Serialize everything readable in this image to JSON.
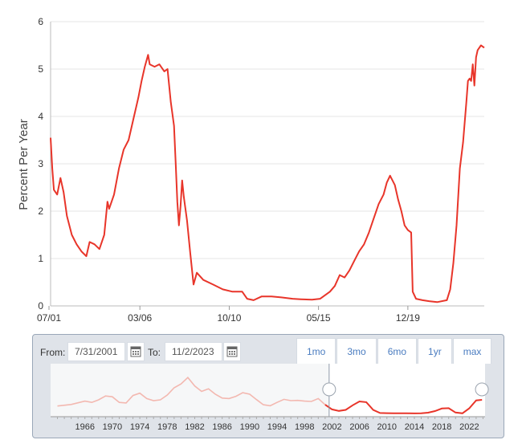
{
  "chart_data": {
    "type": "line",
    "title": "",
    "xlabel": "",
    "ylabel": "Percent Per Year",
    "ylim": [
      0,
      6
    ],
    "yticks": [
      "0",
      "1",
      "2",
      "3",
      "4",
      "5",
      "6"
    ],
    "xlim": [
      "2001-07-31",
      "2023-11-02"
    ],
    "xticks": [
      {
        "label": "07/01",
        "date": "2001-07-01"
      },
      {
        "label": "03/06",
        "date": "2006-03-01"
      },
      {
        "label": "10/10",
        "date": "2010-10-01"
      },
      {
        "label": "05/15",
        "date": "2015-05-01"
      },
      {
        "label": "12/19",
        "date": "2019-12-01"
      }
    ],
    "grid": true,
    "color": "#e8352a",
    "series": [
      {
        "name": "",
        "points": [
          [
            "2001-07-31",
            3.55
          ],
          [
            "2001-09-01",
            2.9
          ],
          [
            "2001-10-01",
            2.45
          ],
          [
            "2001-12-01",
            2.35
          ],
          [
            "2002-02-01",
            2.7
          ],
          [
            "2002-04-01",
            2.4
          ],
          [
            "2002-06-01",
            1.9
          ],
          [
            "2002-09-01",
            1.5
          ],
          [
            "2002-12-01",
            1.3
          ],
          [
            "2003-03-01",
            1.15
          ],
          [
            "2003-06-01",
            1.05
          ],
          [
            "2003-08-01",
            1.35
          ],
          [
            "2003-11-01",
            1.3
          ],
          [
            "2004-02-01",
            1.2
          ],
          [
            "2004-05-01",
            1.5
          ],
          [
            "2004-07-01",
            2.2
          ],
          [
            "2004-08-01",
            2.05
          ],
          [
            "2004-11-01",
            2.35
          ],
          [
            "2005-02-01",
            2.9
          ],
          [
            "2005-05-01",
            3.3
          ],
          [
            "2005-08-01",
            3.5
          ],
          [
            "2005-11-01",
            3.95
          ],
          [
            "2006-02-01",
            4.4
          ],
          [
            "2006-04-01",
            4.75
          ],
          [
            "2006-06-01",
            5.05
          ],
          [
            "2006-08-01",
            5.3
          ],
          [
            "2006-09-01",
            5.1
          ],
          [
            "2006-12-01",
            5.05
          ],
          [
            "2007-03-01",
            5.1
          ],
          [
            "2007-06-01",
            4.95
          ],
          [
            "2007-08-01",
            5.0
          ],
          [
            "2007-10-01",
            4.3
          ],
          [
            "2007-12-01",
            3.8
          ],
          [
            "2008-01-01",
            3.0
          ],
          [
            "2008-02-01",
            2.2
          ],
          [
            "2008-03-01",
            1.7
          ],
          [
            "2008-04-01",
            2.1
          ],
          [
            "2008-05-01",
            2.65
          ],
          [
            "2008-06-01",
            2.3
          ],
          [
            "2008-08-01",
            1.8
          ],
          [
            "2008-10-01",
            1.1
          ],
          [
            "2008-12-01",
            0.45
          ],
          [
            "2009-02-01",
            0.7
          ],
          [
            "2009-06-01",
            0.55
          ],
          [
            "2009-12-01",
            0.45
          ],
          [
            "2010-06-01",
            0.35
          ],
          [
            "2010-12-01",
            0.3
          ],
          [
            "2011-06-01",
            0.3
          ],
          [
            "2011-09-01",
            0.15
          ],
          [
            "2012-01-01",
            0.12
          ],
          [
            "2012-06-01",
            0.2
          ],
          [
            "2012-12-01",
            0.2
          ],
          [
            "2013-06-01",
            0.18
          ],
          [
            "2014-01-01",
            0.15
          ],
          [
            "2014-06-01",
            0.14
          ],
          [
            "2015-01-01",
            0.13
          ],
          [
            "2015-06-01",
            0.15
          ],
          [
            "2015-12-01",
            0.3
          ],
          [
            "2016-03-01",
            0.42
          ],
          [
            "2016-06-01",
            0.65
          ],
          [
            "2016-09-01",
            0.6
          ],
          [
            "2016-12-01",
            0.75
          ],
          [
            "2017-03-01",
            0.95
          ],
          [
            "2017-06-01",
            1.15
          ],
          [
            "2017-09-01",
            1.3
          ],
          [
            "2017-12-01",
            1.55
          ],
          [
            "2018-03-01",
            1.85
          ],
          [
            "2018-06-01",
            2.15
          ],
          [
            "2018-09-01",
            2.35
          ],
          [
            "2018-11-01",
            2.6
          ],
          [
            "2019-01-01",
            2.75
          ],
          [
            "2019-04-01",
            2.55
          ],
          [
            "2019-06-01",
            2.25
          ],
          [
            "2019-08-01",
            2.0
          ],
          [
            "2019-10-01",
            1.7
          ],
          [
            "2019-12-01",
            1.6
          ],
          [
            "2020-02-01",
            1.55
          ],
          [
            "2020-03-01",
            0.3
          ],
          [
            "2020-05-01",
            0.15
          ],
          [
            "2020-09-01",
            0.12
          ],
          [
            "2021-01-01",
            0.1
          ],
          [
            "2021-06-01",
            0.08
          ],
          [
            "2021-12-01",
            0.12
          ],
          [
            "2022-02-01",
            0.35
          ],
          [
            "2022-04-01",
            0.9
          ],
          [
            "2022-06-01",
            1.7
          ],
          [
            "2022-08-01",
            2.9
          ],
          [
            "2022-10-01",
            3.45
          ],
          [
            "2022-12-01",
            4.3
          ],
          [
            "2023-01-01",
            4.75
          ],
          [
            "2023-02-01",
            4.8
          ],
          [
            "2023-03-01",
            4.75
          ],
          [
            "2023-04-01",
            5.1
          ],
          [
            "2023-05-01",
            4.65
          ],
          [
            "2023-06-01",
            5.25
          ],
          [
            "2023-07-01",
            5.4
          ],
          [
            "2023-09-01",
            5.5
          ],
          [
            "2023-11-02",
            5.45
          ]
        ]
      }
    ],
    "navigator": {
      "xticks": [
        "1966",
        "1970",
        "1974",
        "1978",
        "1982",
        "1986",
        "1990",
        "1994",
        "1998",
        "2002",
        "2006",
        "2010",
        "2014",
        "2018",
        "2022"
      ],
      "points": [
        [
          1962,
          2.9
        ],
        [
          1964,
          3.5
        ],
        [
          1966,
          4.8
        ],
        [
          1967,
          4.3
        ],
        [
          1968,
          5.3
        ],
        [
          1969,
          6.8
        ],
        [
          1970,
          6.5
        ],
        [
          1971,
          4.3
        ],
        [
          1972,
          4.1
        ],
        [
          1973,
          7.0
        ],
        [
          1974,
          7.9
        ],
        [
          1975,
          5.8
        ],
        [
          1976,
          5.0
        ],
        [
          1977,
          5.3
        ],
        [
          1978,
          7.2
        ],
        [
          1979,
          10.0
        ],
        [
          1980,
          11.5
        ],
        [
          1981,
          14.0
        ],
        [
          1982,
          10.7
        ],
        [
          1983,
          8.6
        ],
        [
          1984,
          9.6
        ],
        [
          1985,
          7.5
        ],
        [
          1986,
          6.0
        ],
        [
          1987,
          5.8
        ],
        [
          1988,
          6.7
        ],
        [
          1989,
          8.1
        ],
        [
          1990,
          7.5
        ],
        [
          1991,
          5.4
        ],
        [
          1992,
          3.4
        ],
        [
          1993,
          3.0
        ],
        [
          1994,
          4.3
        ],
        [
          1995,
          5.5
        ],
        [
          1996,
          5.0
        ],
        [
          1997,
          5.1
        ],
        [
          1998,
          4.8
        ],
        [
          1999,
          4.7
        ],
        [
          2000,
          5.8
        ],
        [
          2001,
          3.4
        ],
        [
          2002,
          1.6
        ],
        [
          2003,
          1.0
        ],
        [
          2004,
          1.4
        ],
        [
          2005,
          3.2
        ],
        [
          2006,
          4.7
        ],
        [
          2007,
          4.4
        ],
        [
          2008,
          1.4
        ],
        [
          2009,
          0.2
        ],
        [
          2010,
          0.14
        ],
        [
          2011,
          0.05
        ],
        [
          2012,
          0.09
        ],
        [
          2013,
          0.06
        ],
        [
          2014,
          0.03
        ],
        [
          2015,
          0.05
        ],
        [
          2016,
          0.32
        ],
        [
          2017,
          0.93
        ],
        [
          2018,
          1.94
        ],
        [
          2019,
          2.06
        ],
        [
          2020,
          0.37
        ],
        [
          2021,
          0.05
        ],
        [
          2022,
          2.0
        ],
        [
          2023,
          5.1
        ],
        [
          2023.85,
          5.3
        ]
      ],
      "xlim": [
        1961,
        2024.3
      ],
      "ylim": [
        0,
        15
      ],
      "selected": [
        "2001-07-31",
        "2023-11-02"
      ]
    }
  },
  "controls": {
    "from_label": "From:",
    "from_value": "7/31/2001",
    "to_label": "To:",
    "to_value": "11/2/2023",
    "range_buttons": [
      "1mo",
      "3mo",
      "6mo",
      "1yr",
      "max"
    ],
    "button_color": "#4a7cc0"
  }
}
